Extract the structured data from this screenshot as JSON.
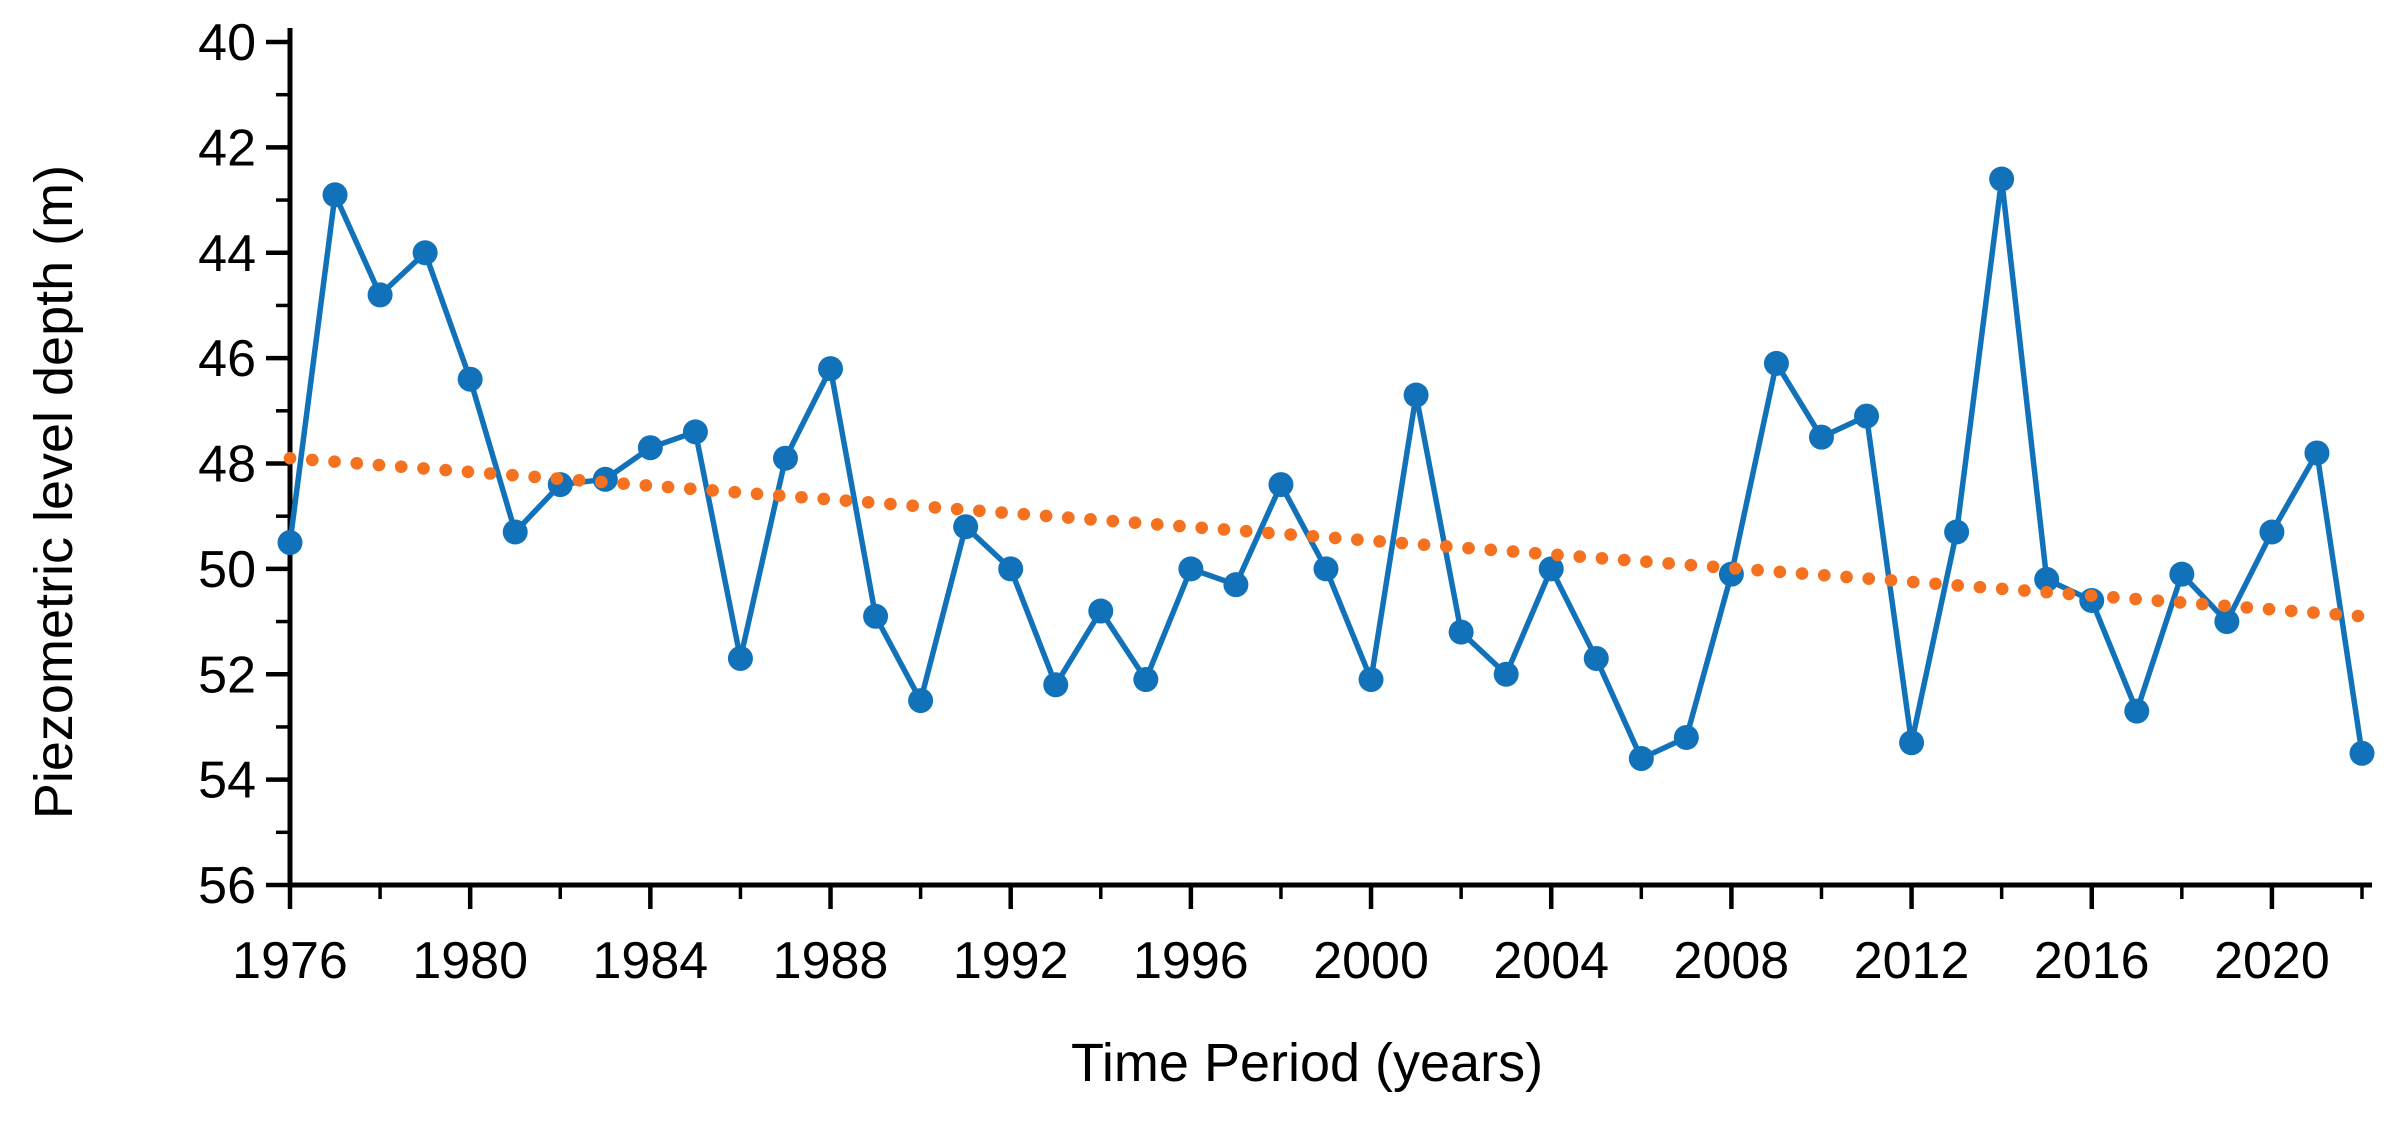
{
  "chart_data": {
    "type": "line",
    "title": "",
    "xlabel": "Time Period (years)",
    "ylabel": "Piezometric level depth (m)",
    "x_range": [
      1976,
      2022
    ],
    "y_range": [
      40,
      56
    ],
    "y_axis_inverted_depth": true,
    "grid": false,
    "legend_position": "none",
    "x_major_tick_labels": [
      "1976",
      "1980",
      "1984",
      "1988",
      "1992",
      "1996",
      "2000",
      "2004",
      "2008",
      "2012",
      "2016",
      "2020"
    ],
    "x_major_tick_step": 4,
    "x_minor_tick_step": 2,
    "y_major_tick_labels": [
      "40",
      "42",
      "44",
      "46",
      "48",
      "50",
      "52",
      "54",
      "56"
    ],
    "y_major_tick_step": 2,
    "y_minor_tick_step": 1,
    "series": [
      {
        "name": "piezometric-level-depth",
        "style": "line-with-markers",
        "color": "#1272B9",
        "x": [
          1976,
          1977,
          1978,
          1979,
          1980,
          1981,
          1982,
          1983,
          1984,
          1985,
          1986,
          1987,
          1988,
          1989,
          1990,
          1991,
          1992,
          1993,
          1994,
          1995,
          1996,
          1997,
          1998,
          1999,
          2000,
          2001,
          2002,
          2003,
          2004,
          2005,
          2006,
          2007,
          2008,
          2009,
          2010,
          2011,
          2012,
          2013,
          2014,
          2015,
          2016,
          2017,
          2018,
          2019,
          2020,
          2021,
          2022
        ],
        "values": [
          49.5,
          42.9,
          44.8,
          44.0,
          46.4,
          49.3,
          48.4,
          48.3,
          47.7,
          47.4,
          51.7,
          47.9,
          46.2,
          50.9,
          52.5,
          49.2,
          50.0,
          52.2,
          50.8,
          52.1,
          50.0,
          50.3,
          48.4,
          50.0,
          52.1,
          46.7,
          51.2,
          52.0,
          50.0,
          51.7,
          53.6,
          53.2,
          50.1,
          46.1,
          47.5,
          47.1,
          53.3,
          49.3,
          42.6,
          50.2,
          50.6,
          52.7,
          50.1,
          51.0,
          49.3,
          47.8,
          53.5
        ]
      },
      {
        "name": "linear-trendline",
        "style": "dotted-trendline",
        "color": "#F4711F",
        "x": [
          1976,
          2022
        ],
        "values": [
          47.9,
          50.9
        ]
      }
    ]
  },
  "axes": {
    "xlabel": "Time Period (years)",
    "ylabel": "Piezometric level depth (m)"
  },
  "colors": {
    "series_blue": "#1272B9",
    "trend_orange": "#F4711F",
    "axis_black": "#000000",
    "background": "#FFFFFF"
  }
}
